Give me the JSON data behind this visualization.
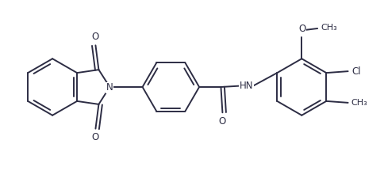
{
  "bg_color": "#ffffff",
  "line_color": "#2d2d44",
  "line_width": 1.4,
  "font_size": 8.5,
  "figsize": [
    4.84,
    2.2
  ],
  "dpi": 100,
  "xlim": [
    0,
    9.68
  ],
  "ylim": [
    0,
    4.4
  ]
}
